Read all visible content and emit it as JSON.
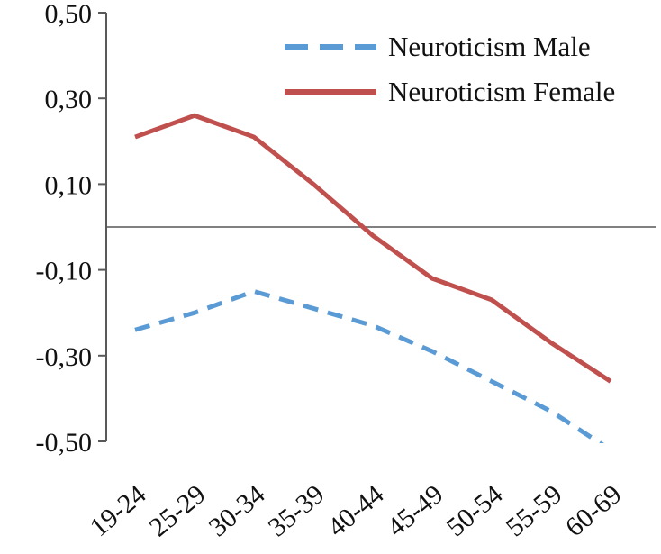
{
  "chart_data": {
    "type": "line",
    "categories": [
      "19-24",
      "25-29",
      "30-34",
      "35-39",
      "40-44",
      "45-49",
      "50-54",
      "55-59",
      "60-69"
    ],
    "series": [
      {
        "name": "Neuroticism Male",
        "color": "#5b9bd5",
        "dash": true,
        "values": [
          -0.24,
          -0.2,
          -0.15,
          -0.19,
          -0.23,
          -0.29,
          -0.36,
          -0.43,
          -0.52
        ]
      },
      {
        "name": "Neuroticism Female",
        "color": "#c0504d",
        "dash": false,
        "values": [
          0.21,
          0.26,
          0.21,
          0.1,
          -0.02,
          -0.12,
          -0.17,
          -0.27,
          -0.36
        ]
      }
    ],
    "y_ticks": [
      {
        "value": 0.5,
        "label": "0,50"
      },
      {
        "value": 0.3,
        "label": "0,30"
      },
      {
        "value": 0.1,
        "label": "0,10"
      },
      {
        "value": -0.1,
        "label": "-0,10"
      },
      {
        "value": -0.3,
        "label": "-0,30"
      },
      {
        "value": -0.5,
        "label": "-0,50"
      }
    ],
    "ylim": [
      -0.5,
      0.5
    ],
    "grid": false,
    "legend_position": "top-right",
    "axis": {
      "color": "#595959",
      "zero_line_color": "#808080",
      "text_color": "#111111"
    }
  }
}
